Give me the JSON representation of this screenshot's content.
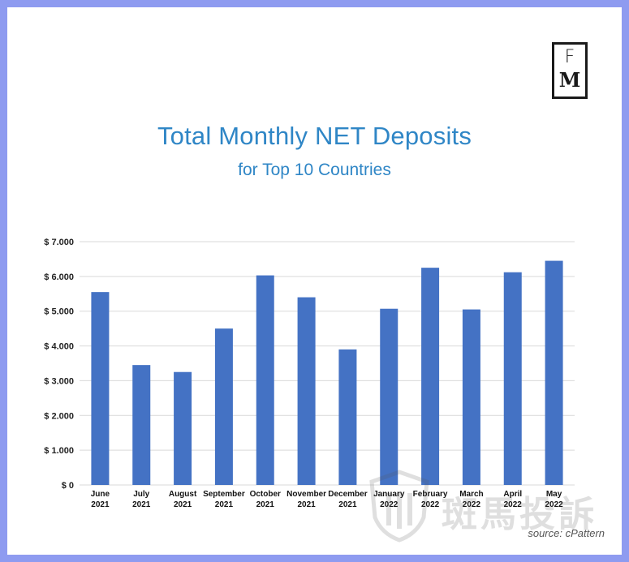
{
  "logo": {
    "line1": "F",
    "line2": "M"
  },
  "chart_data": {
    "type": "bar",
    "title": "Total Monthly NET Deposits",
    "subtitle": "for Top 10 Countries",
    "xlabel": "",
    "ylabel": "",
    "categories": [
      [
        "June",
        "2021"
      ],
      [
        "July",
        "2021"
      ],
      [
        "August",
        "2021"
      ],
      [
        "September",
        "2021"
      ],
      [
        "October",
        "2021"
      ],
      [
        "November",
        "2021"
      ],
      [
        "December",
        "2021"
      ],
      [
        "January",
        "2022"
      ],
      [
        "February",
        "2022"
      ],
      [
        "March",
        "2022"
      ],
      [
        "April",
        "2022"
      ],
      [
        "May",
        "2022"
      ]
    ],
    "values": [
      5550,
      3450,
      3250,
      4500,
      6030,
      5400,
      3900,
      5070,
      6250,
      5050,
      6120,
      6450
    ],
    "ylim": [
      0,
      7000
    ],
    "yticks": [
      0,
      1000,
      2000,
      3000,
      4000,
      5000,
      6000,
      7000
    ],
    "ytick_labels": [
      "$ 0",
      "$ 1.000",
      "$ 2.000",
      "$ 3.000",
      "$ 4.000",
      "$ 5.000",
      "$ 6.000",
      "$ 7.000"
    ],
    "grid": true,
    "bar_color": "#4472c4"
  },
  "source": "source: cPattern",
  "watermark": "斑馬投訴"
}
